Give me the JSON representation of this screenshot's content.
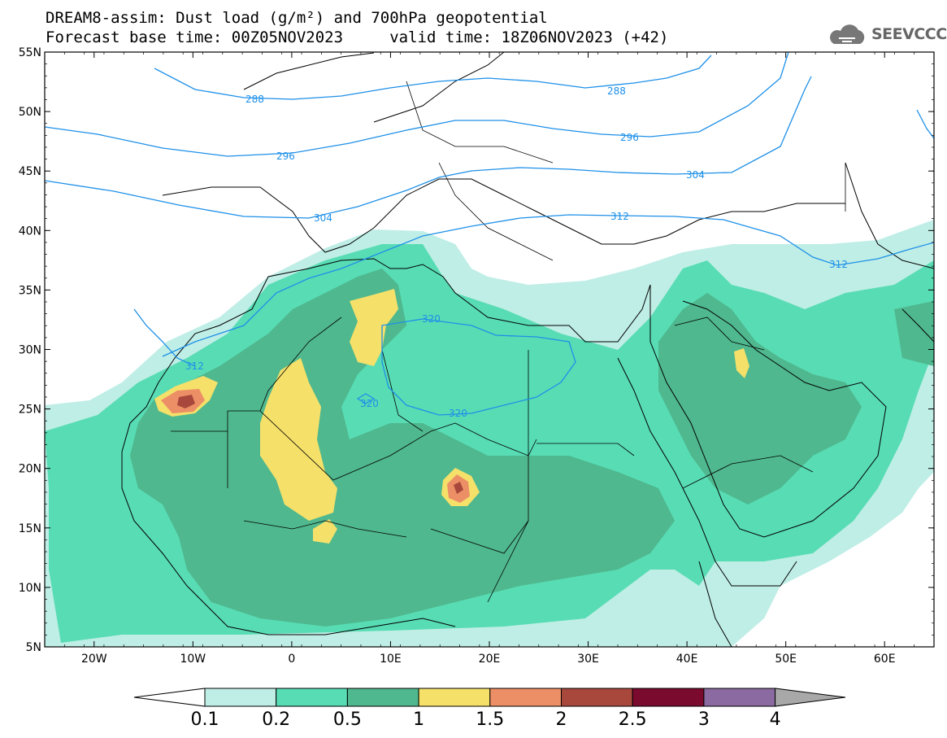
{
  "title": {
    "line1": "DREAM8-assim: Dust load (g/m²) and 700hPa geopotential",
    "line2": "Forecast base time: 00Z05NOV2023     valid time: 18Z06NOV2023 (+42)"
  },
  "logo": {
    "icon": "cloud-logo-icon",
    "text": "SEEVCCC"
  },
  "map": {
    "lon_range": [
      -25,
      65
    ],
    "lat_range": [
      5,
      55
    ],
    "lat_ticks": [
      "55N",
      "50N",
      "45N",
      "40N",
      "35N",
      "30N",
      "25N",
      "20N",
      "15N",
      "10N",
      "5N"
    ],
    "lon_ticks": [
      "20W",
      "10W",
      "0",
      "10E",
      "20E",
      "30E",
      "40E",
      "50E",
      "60E"
    ],
    "contour_labels": [
      "288",
      "288",
      "296",
      "296",
      "304",
      "304",
      "312",
      "312",
      "312",
      "320",
      "320",
      "320"
    ]
  },
  "colorbar": {
    "labels": [
      "0.1",
      "0.2",
      "0.5",
      "1",
      "1.5",
      "2",
      "2.5",
      "3",
      "4"
    ],
    "colors": [
      "#ffffff",
      "#bfeee6",
      "#58dcb4",
      "#4fb88e",
      "#f5e06a",
      "#ec8f66",
      "#a8483c",
      "#7a0a2e",
      "#8a6aa0",
      "#a8a8a8"
    ]
  }
}
